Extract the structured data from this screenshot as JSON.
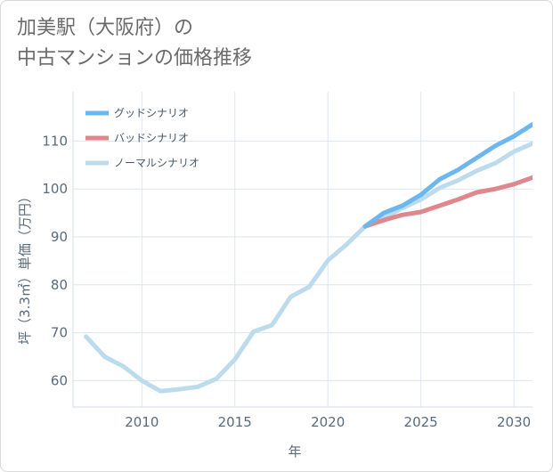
{
  "header": {
    "title_line1": "加美駅（大阪府）の",
    "title_line2": "中古マンションの価格推移"
  },
  "chart_data": {
    "type": "line",
    "xlabel": "年",
    "ylabel": "坪（3.3㎡）単価（万円）",
    "xlim": [
      2006.3,
      2031
    ],
    "ylim": [
      54.5,
      120.3
    ],
    "xticks": [
      2010,
      2015,
      2020,
      2025,
      2030
    ],
    "yticks": [
      60,
      70,
      80,
      90,
      100,
      110
    ],
    "grid": true,
    "legend_position": "top-left",
    "series": [
      {
        "name": "グッドシナリオ",
        "color": "#6cb8ee",
        "x": [
          2022,
          2023,
          2024,
          2025,
          2026,
          2027,
          2028,
          2029,
          2030,
          2031
        ],
        "y": [
          92.2,
          95.0,
          96.5,
          98.8,
          102.0,
          104.0,
          106.5,
          109.0,
          111.0,
          113.5
        ]
      },
      {
        "name": "バッドシナリオ",
        "color": "#e0868d",
        "x": [
          2022,
          2023,
          2024,
          2025,
          2026,
          2027,
          2028,
          2029,
          2030,
          2031
        ],
        "y": [
          92.2,
          93.5,
          94.6,
          95.2,
          96.5,
          97.8,
          99.3,
          100.0,
          101.0,
          102.4
        ]
      },
      {
        "name": "ノーマルシナリオ",
        "color": "#bcdcee",
        "x": [
          2007,
          2008,
          2009,
          2010,
          2011,
          2012,
          2013,
          2014,
          2015,
          2016,
          2017,
          2018,
          2019,
          2020,
          2021,
          2022,
          2023,
          2024,
          2025,
          2026,
          2027,
          2028,
          2029,
          2030,
          2031
        ],
        "y": [
          69.2,
          65.0,
          63.0,
          60.0,
          57.8,
          58.2,
          58.7,
          60.4,
          64.4,
          70.2,
          71.6,
          77.5,
          79.6,
          85.1,
          88.4,
          92.2,
          94.0,
          96.0,
          97.8,
          100.2,
          101.8,
          103.8,
          105.4,
          107.8,
          109.5
        ]
      }
    ]
  }
}
